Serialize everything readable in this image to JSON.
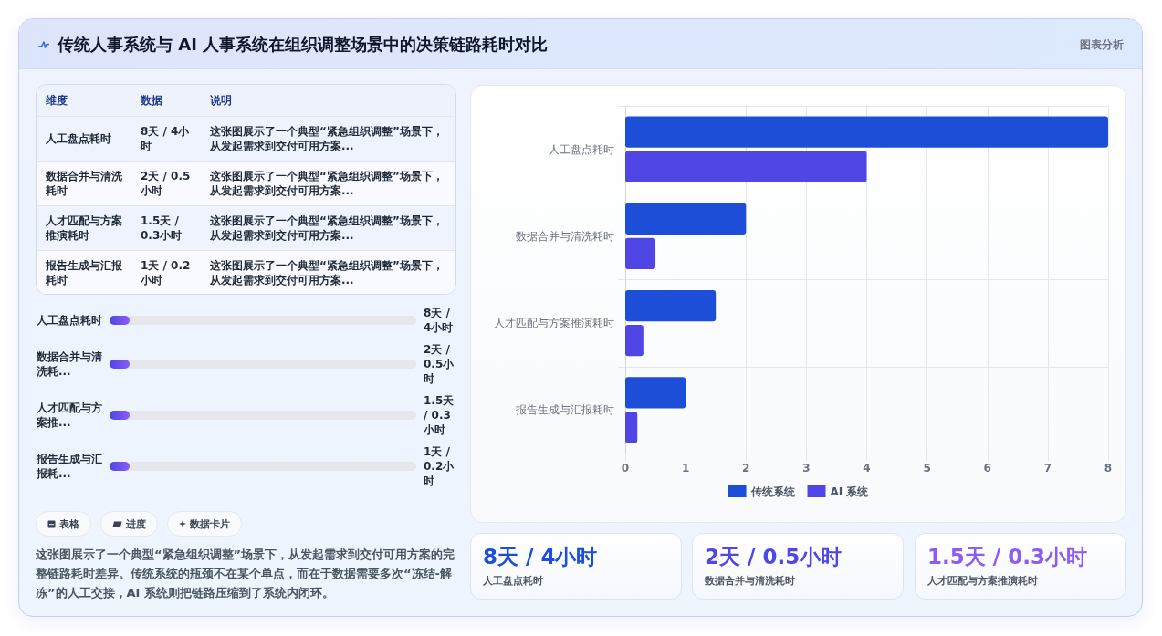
{
  "chart_data": [
    {
      "type": "other",
      "title": "传统人事系统与 AI 人事系统在组织调整场景中的决策链路耗时对比",
      "annotations": [
        "图表分析"
      ]
    },
    {
      "type": "other",
      "annotations": [
        "维度",
        "数据",
        "说明",
        "人工盘点耗时",
        "8天 / 4小时",
        "这张图展示了一个典型“紧急组织调整”场景下，从发起需求到交付可用方案...",
        "数据合并与清洗耗时",
        "2天 / 0.5小时",
        "这张图展示了一个典型“紧急组织调整”场景下，从发起需求到交付可用方案...",
        "人才匹配与方案推演耗时",
        "1.5天 / 0.3小时",
        "这张图展示了一个典型“紧急组织调整”场景下，从发起需求到交付可用方案...",
        "报告生成与汇报耗时",
        "1天 / 0.2小时",
        "这张图展示了一个典型“紧急组织调整”场景下，从发起需求到交付可用方案..."
      ]
    },
    {
      "type": "bar",
      "orientation": "horizontal",
      "categories": [
        "人工盘点耗时",
        "数据合并与清洗耗时",
        "人才匹配与方案推演耗时",
        "报告生成与汇报耗时"
      ],
      "series": [
        {
          "name": "传统系统",
          "color": "#1d4ed8",
          "values": [
            8,
            2,
            1.5,
            1
          ]
        },
        {
          "name": "AI 系统",
          "color": "#4f46e5",
          "values": [
            4,
            0.5,
            0.3,
            0.2
          ]
        }
      ],
      "xlim": [
        0,
        8
      ],
      "xticks": [
        0,
        1,
        2,
        3,
        4,
        5,
        6,
        7,
        8
      ],
      "grid": true,
      "legend": "bottom"
    },
    {
      "type": "other",
      "annotations": [
        "人工盘点耗时",
        "8天 / 4小时",
        "数据合并与清洗耗...",
        "2天 / 0.5小时",
        "人才匹配与方案推...",
        "1.5天 / 0.3小时",
        "报告生成与汇报耗...",
        "1天 / 0.2小时"
      ]
    },
    {
      "type": "other",
      "annotations": [
        "表格",
        "进度",
        "数据卡片"
      ]
    },
    {
      "type": "other",
      "annotations": [
        "这张图展示了一个典型“紧急组织调整”场景下，从发起需求到交付可用方案的完整链路耗时差异。传统系统的瓶颈不在某个单点，而在于数据需要多次“冻结-解冻”的人工交接，AI 系统则把链路压缩到了系统内闭环。"
      ]
    },
    {
      "type": "other",
      "title": "8天 / 4小时",
      "subtitle": "人工盘点耗时",
      "color": "#1d4ed8"
    },
    {
      "type": "other",
      "title": "2天 / 0.5小时",
      "subtitle": "数据合并与清洗耗时",
      "color": "#4f46e5"
    },
    {
      "type": "other",
      "title": "1.5天 / 0.3小时",
      "subtitle": "人才匹配与方案推演耗时",
      "color": "#8b5cf6"
    }
  ]
}
